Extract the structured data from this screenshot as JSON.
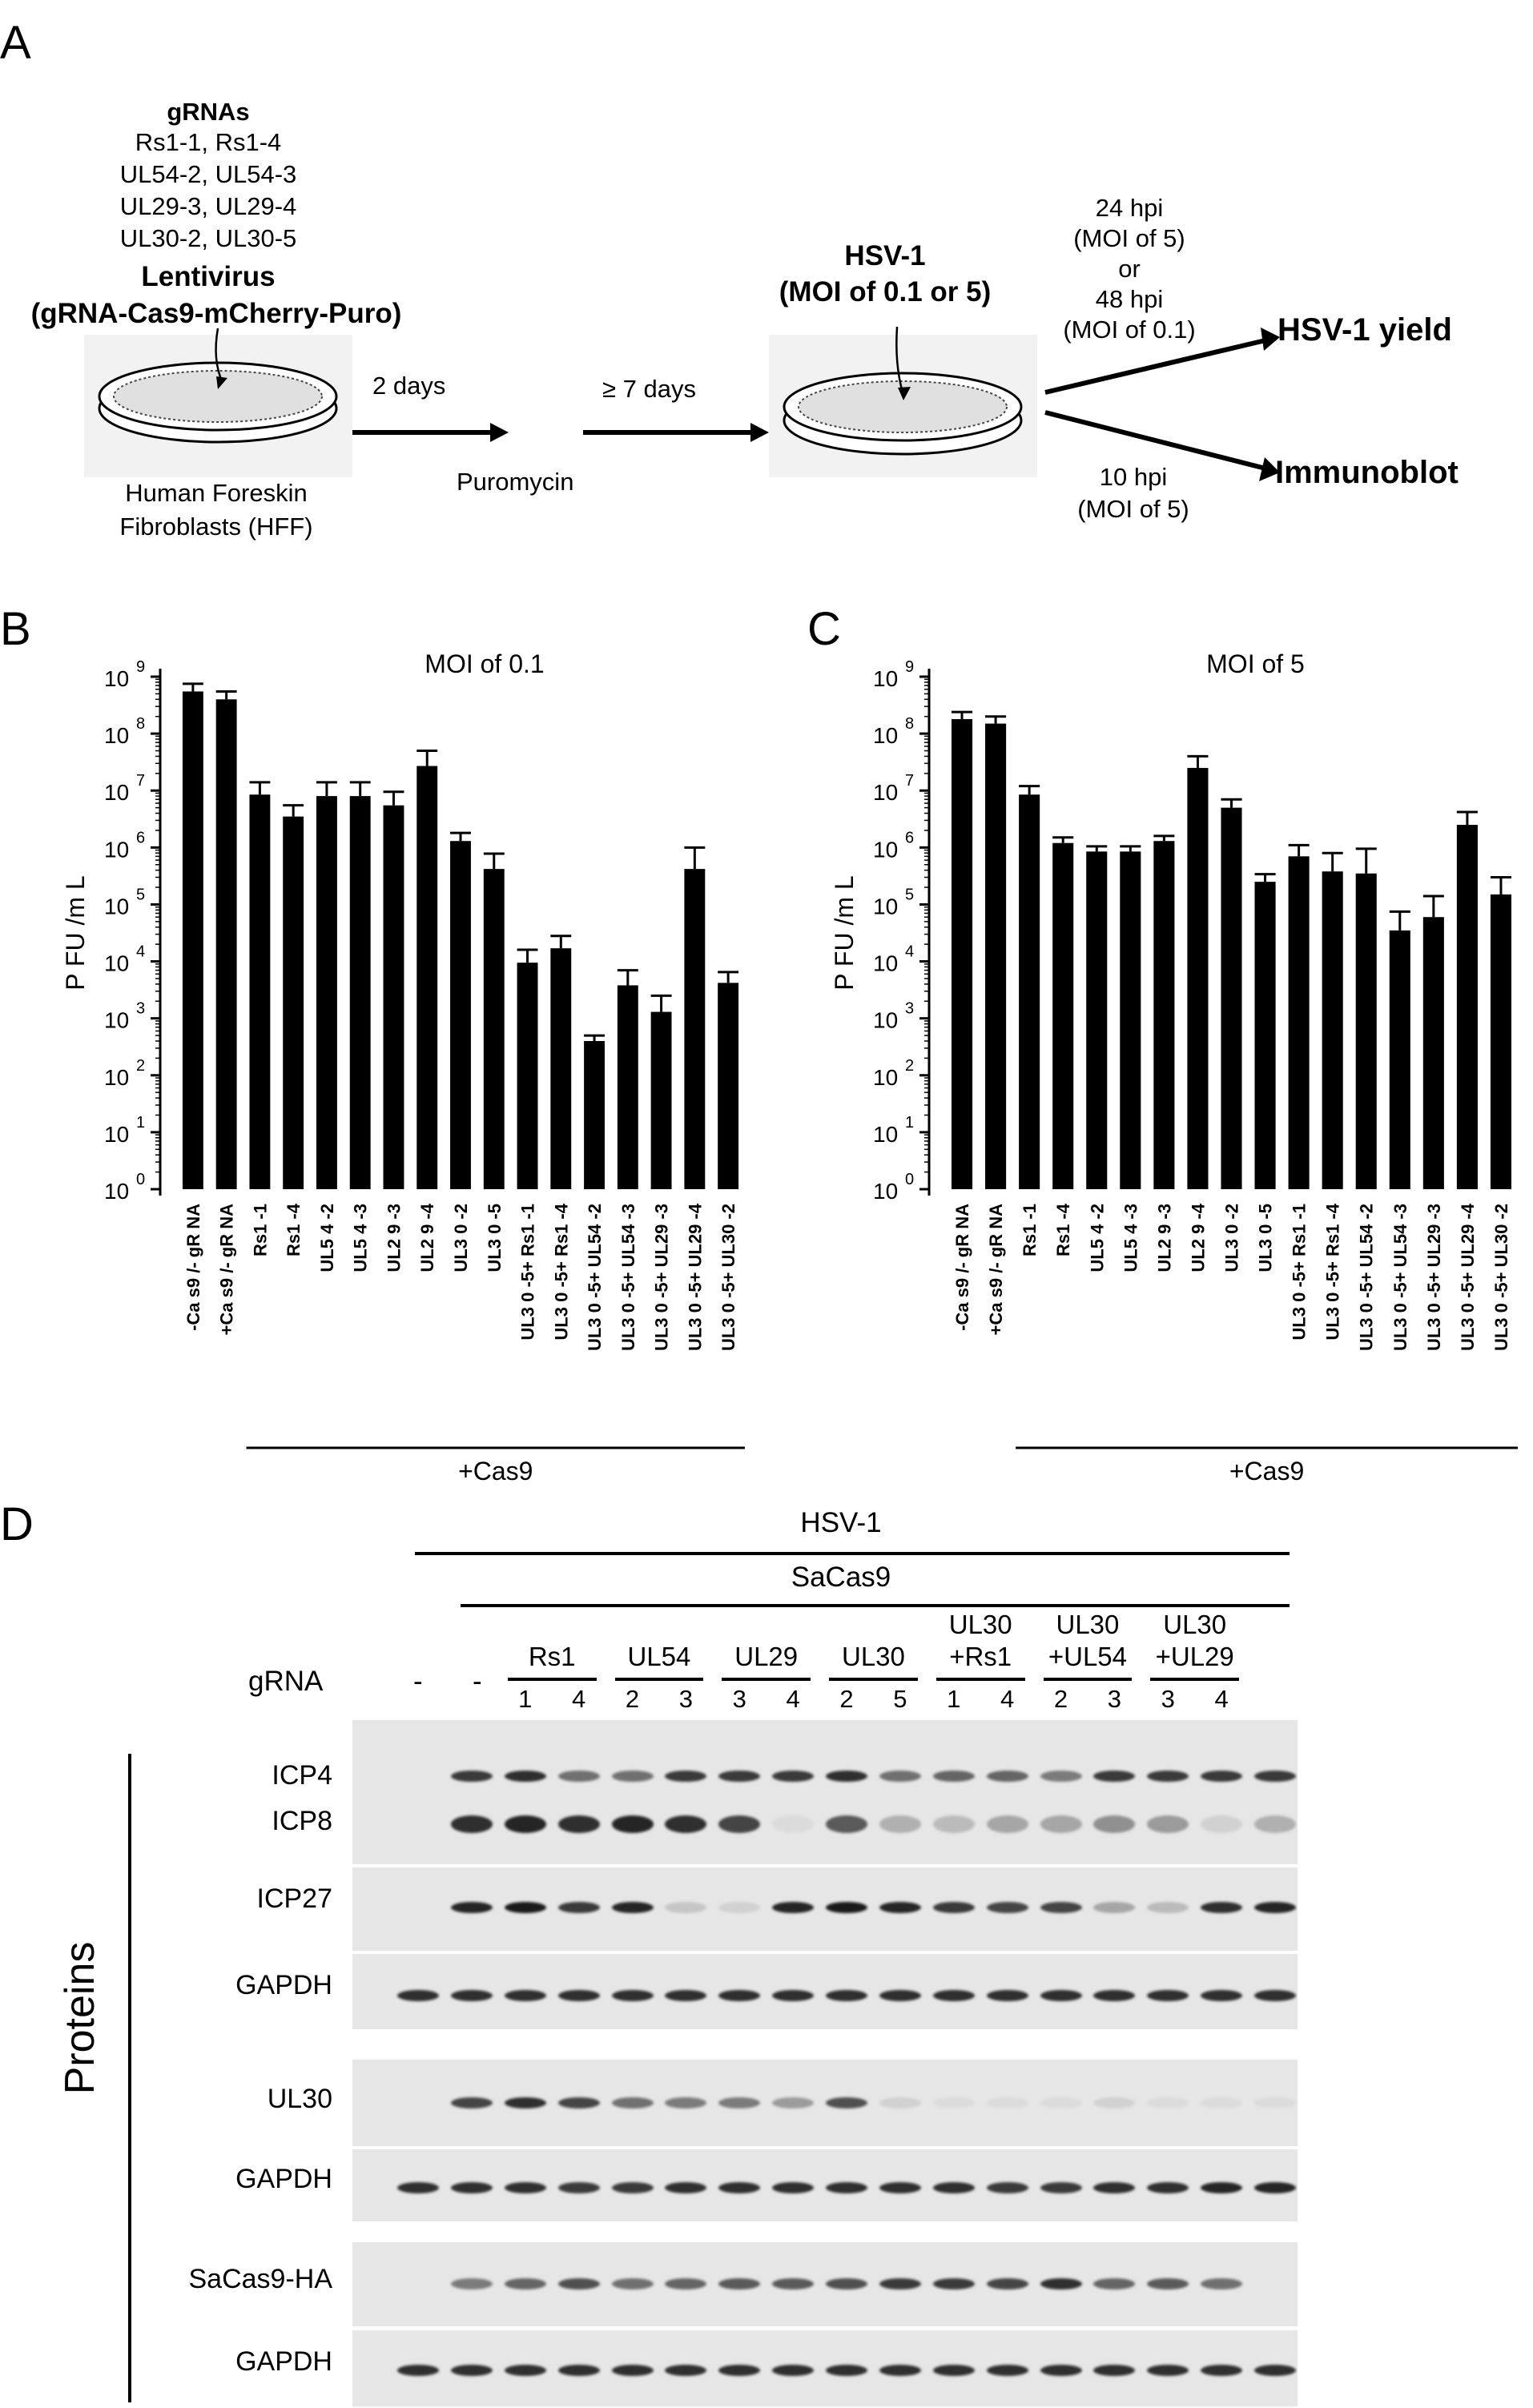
{
  "panel_letters": {
    "a": "A",
    "b": "B",
    "c": "C",
    "d": "D"
  },
  "schematic": {
    "grnas_title": "gRNAs",
    "grna_lines": [
      "Rs1-1, Rs1-4",
      "UL54-2, UL54-3",
      "UL29-3, UL29-4",
      "UL30-2, UL30-5"
    ],
    "lentivirus_title": "Lentivirus",
    "lentivirus_construct": "(gRNA-Cas9-mCherry-Puro)",
    "cells_line1": "Human Foreskin",
    "cells_line2": "Fibroblasts (HFF)",
    "step1": "2 days",
    "step2": "≥ 7 days",
    "selection": "Puromycin",
    "virus_line1": "HSV-1",
    "virus_line2": "(MOI of 0.1 or 5)",
    "upper_time1": "24 hpi",
    "upper_moi1": "(MOI of 5)",
    "upper_or": "or",
    "upper_time2": "48 hpi",
    "upper_moi2": "(MOI of 0.1)",
    "yield_label": "HSV-1 yield",
    "lower_time": "10 hpi",
    "lower_moi": "(MOI of 5)",
    "immunoblot_label": "Immunoblot"
  },
  "chart_data": [
    {
      "type": "bar",
      "title": "MOI of 0.1",
      "ylabel": "P FU /m L",
      "yscale": "log",
      "ylim": [
        1,
        1000000000
      ],
      "ytick_exponents": [
        0,
        1,
        2,
        3,
        4,
        5,
        6,
        7,
        8,
        9
      ],
      "categories": [
        "-Ca s9 /- gR NA",
        "+Ca s9 /- gR NA",
        "Rs1 -1",
        "Rs1 -4",
        "UL5 4 -2",
        "UL5 4 -3",
        "UL2 9 -3",
        "UL2 9 -4",
        "UL3 0 -2",
        "UL3 0 -5",
        "UL3 0 -5+ Rs1 -1",
        "UL3 0 -5+ Rs1 -4",
        "UL3 0 -5+ UL54 -2",
        "UL3 0 -5+ UL54 -3",
        "UL3 0 -5+ UL29 -3",
        "UL3 0 -5+ UL29 -4",
        "UL3 0 -5+ UL30 -2"
      ],
      "values": [
        550000000,
        400000000,
        8500000,
        3500000,
        8000000,
        8000000,
        5500000,
        27000000,
        1300000,
        420000,
        9500,
        17000,
        400,
        3800,
        1300,
        420000,
        4200
      ],
      "errors_upper": [
        750000000,
        550000000,
        14000000,
        5500000,
        14000000,
        14000000,
        9500000,
        50000000,
        1800000,
        780000,
        16000,
        28000,
        500,
        7000,
        2500,
        1000000,
        6500
      ],
      "group_label": "+Cas9"
    },
    {
      "type": "bar",
      "title": "MOI of 5",
      "ylabel": "P FU /m L",
      "yscale": "log",
      "ylim": [
        1,
        1000000000
      ],
      "ytick_exponents": [
        0,
        1,
        2,
        3,
        4,
        5,
        6,
        7,
        8,
        9
      ],
      "categories": [
        "-Ca s9 /- gR NA",
        "+Ca s9 /- gR NA",
        "Rs1 -1",
        "Rs1 -4",
        "UL5 4 -2",
        "UL5 4 -3",
        "UL2 9 -3",
        "UL2 9 -4",
        "UL3 0 -2",
        "UL3 0 -5",
        "UL3 0 -5+ Rs1 -1",
        "UL3 0 -5+ Rs1 -4",
        "UL3 0 -5+ UL54 -2",
        "UL3 0 -5+ UL54 -3",
        "UL3 0 -5+ UL29 -3",
        "UL3 0 -5+ UL29 -4",
        "UL3 0 -5+ UL30 -2"
      ],
      "values": [
        180000000,
        150000000,
        8500000,
        1200000,
        850000,
        850000,
        1300000,
        25000000,
        5000000,
        250000,
        700000,
        380000,
        350000,
        35000,
        60000,
        2500000,
        150000
      ],
      "errors_upper": [
        240000000,
        200000000,
        12000000,
        1500000,
        1050000,
        1050000,
        1600000,
        40000000,
        7000000,
        340000,
        1100000,
        800000,
        950000,
        75000,
        140000,
        4200000,
        300000
      ],
      "group_label": "+Cas9"
    }
  ],
  "blot": {
    "top_label": "HSV-1",
    "sacas_label": "SaCas9",
    "grna_label": "gRNA",
    "dash1": "-",
    "dash2": "-",
    "groups": [
      {
        "line1": "",
        "line2": "Rs1",
        "lanes": [
          "1",
          "4"
        ]
      },
      {
        "line1": "",
        "line2": "UL54",
        "lanes": [
          "2",
          "3"
        ]
      },
      {
        "line1": "",
        "line2": "UL29",
        "lanes": [
          "3",
          "4"
        ]
      },
      {
        "line1": "",
        "line2": "UL30",
        "lanes": [
          "2",
          "5"
        ]
      },
      {
        "line1": "UL30",
        "line2": "+Rs1",
        "lanes": [
          "1",
          "4"
        ]
      },
      {
        "line1": "UL30",
        "line2": "+UL54",
        "lanes": [
          "2",
          "3"
        ]
      },
      {
        "line1": "UL30",
        "line2": "+UL29",
        "lanes": [
          "3",
          "4"
        ]
      }
    ],
    "side_label": "Proteins",
    "rows": [
      {
        "label": "ICP4",
        "intensity": [
          0,
          0.8,
          0.85,
          0.55,
          0.55,
          0.8,
          0.8,
          0.8,
          0.85,
          0.55,
          0.6,
          0.6,
          0.5,
          0.8,
          0.8,
          0.8,
          0.8
        ]
      },
      {
        "label": "ICP8",
        "intensity": [
          0,
          0.85,
          0.9,
          0.85,
          0.9,
          0.85,
          0.75,
          0.05,
          0.65,
          0.25,
          0.2,
          0.3,
          0.3,
          0.4,
          0.35,
          0.1,
          0.25
        ]
      },
      {
        "label": "ICP27",
        "intensity": [
          0,
          0.9,
          0.95,
          0.8,
          0.9,
          0.15,
          0.1,
          0.9,
          0.95,
          0.9,
          0.8,
          0.75,
          0.75,
          0.3,
          0.2,
          0.85,
          0.9
        ]
      },
      {
        "label": "GAPDH",
        "intensity": [
          0.85,
          0.85,
          0.85,
          0.85,
          0.85,
          0.85,
          0.85,
          0.85,
          0.85,
          0.85,
          0.85,
          0.85,
          0.85,
          0.85,
          0.85,
          0.85,
          0.85
        ]
      },
      {
        "label": "UL30",
        "intensity": [
          0,
          0.75,
          0.85,
          0.75,
          0.55,
          0.5,
          0.5,
          0.35,
          0.7,
          0.1,
          0.05,
          0.05,
          0.05,
          0.1,
          0.05,
          0.05,
          0.05
        ]
      },
      {
        "label": "GAPDH",
        "intensity": [
          0.85,
          0.85,
          0.85,
          0.8,
          0.8,
          0.85,
          0.85,
          0.85,
          0.85,
          0.85,
          0.85,
          0.8,
          0.8,
          0.85,
          0.85,
          0.9,
          0.9
        ]
      },
      {
        "label": "SaCas9-HA",
        "intensity": [
          0,
          0.5,
          0.6,
          0.7,
          0.55,
          0.6,
          0.65,
          0.65,
          0.7,
          0.8,
          0.8,
          0.75,
          0.85,
          0.6,
          0.65,
          0.55,
          0.0
        ]
      },
      {
        "label": "GAPDH",
        "intensity": [
          0.85,
          0.85,
          0.85,
          0.85,
          0.85,
          0.85,
          0.85,
          0.85,
          0.85,
          0.85,
          0.85,
          0.85,
          0.85,
          0.85,
          0.85,
          0.85,
          0.85
        ]
      }
    ]
  }
}
